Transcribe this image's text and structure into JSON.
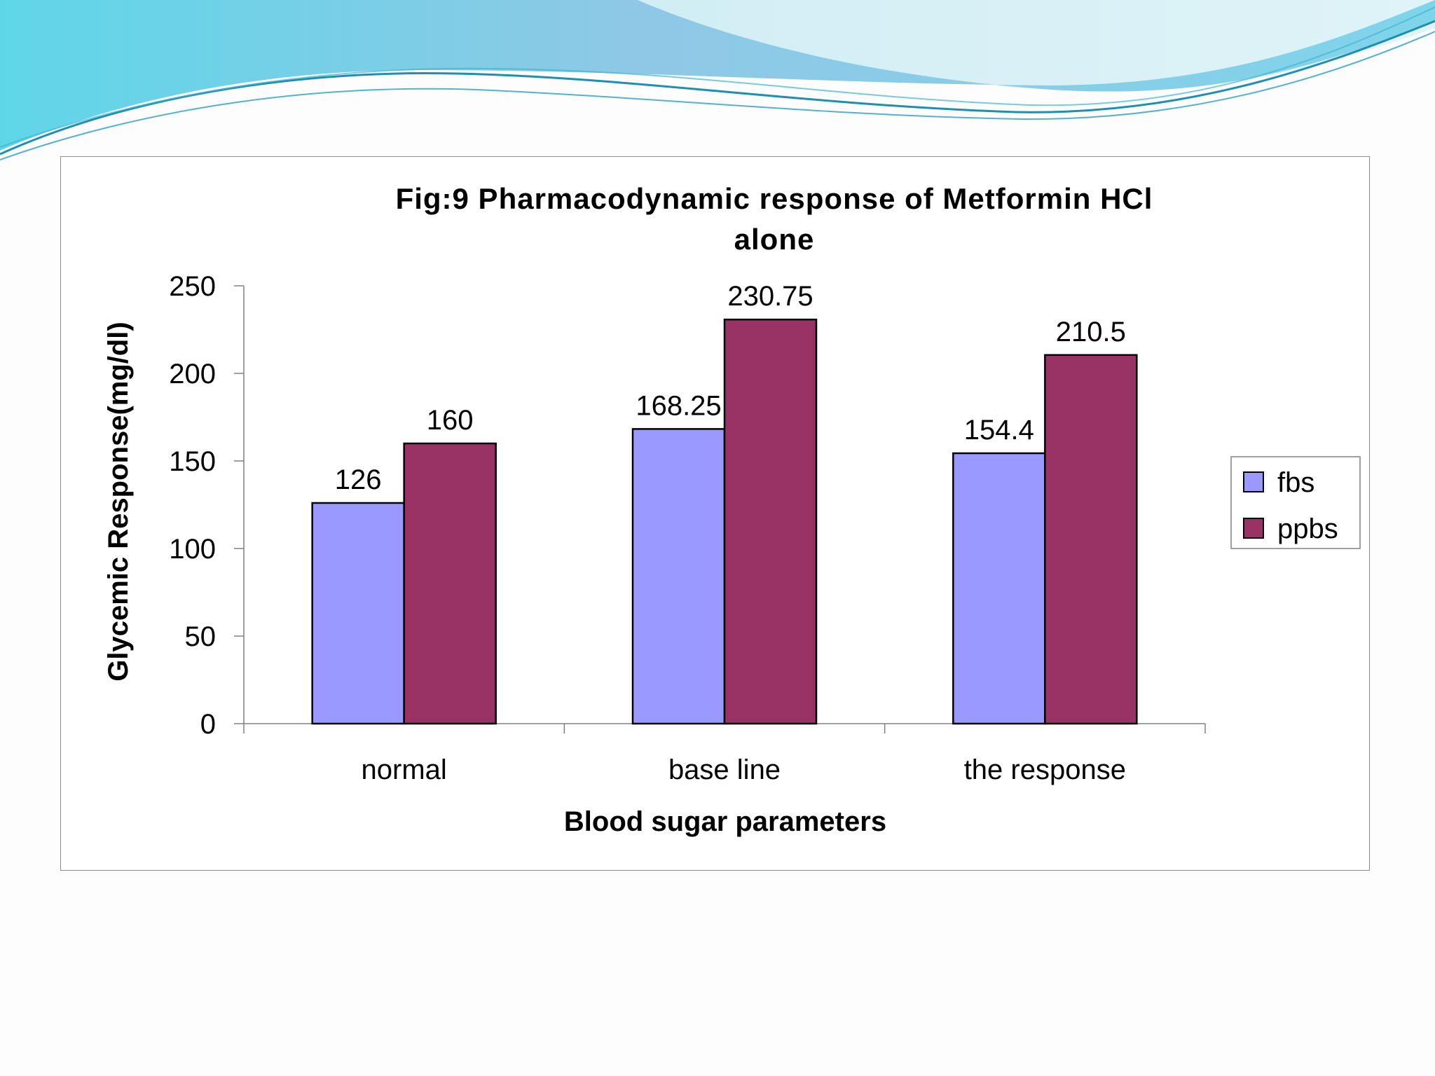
{
  "chart_data": {
    "type": "bar",
    "title_lines": [
      "Fig:9 Pharmacodynamic response of Metformin HCl",
      "alone"
    ],
    "xlabel": "Blood sugar parameters",
    "ylabel": "Glycemic Response(mg/dl)",
    "categories": [
      "normal",
      "base line",
      "the response"
    ],
    "series": [
      {
        "name": "fbs",
        "values": [
          126,
          168.25,
          154.4
        ],
        "value_labels": [
          "126",
          "168.25",
          "154.4"
        ],
        "color": "#9999ff"
      },
      {
        "name": "ppbs",
        "values": [
          160,
          230.75,
          210.5
        ],
        "value_labels": [
          "160",
          "230.75",
          "210.5"
        ],
        "color": "#993366"
      }
    ],
    "ylim": [
      0,
      250
    ],
    "yticks": [
      0,
      50,
      100,
      150,
      200,
      250
    ],
    "ytick_labels": [
      "0",
      "50",
      "100",
      "150",
      "200",
      "250"
    ],
    "grid": false,
    "legend_position": "right",
    "bar_outline_color": "#000000"
  }
}
